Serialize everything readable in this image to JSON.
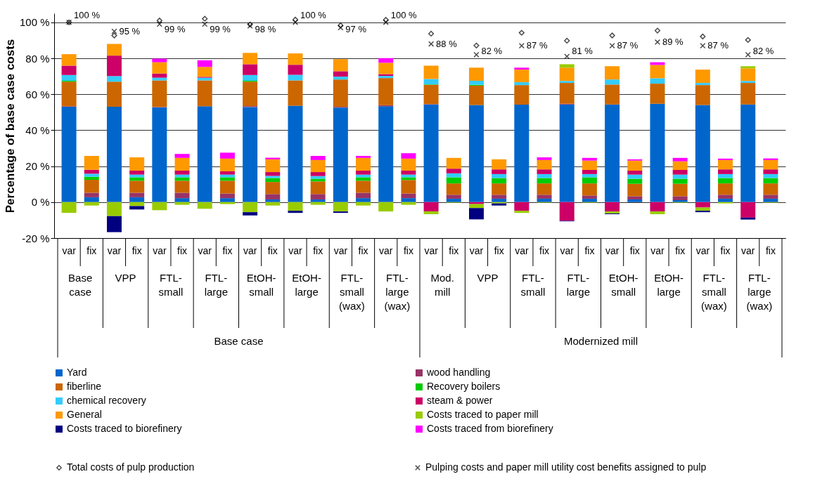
{
  "chart_data": {
    "type": "bar",
    "stacked": true,
    "ylabel": "Percentage of base case costs",
    "ylim": [
      -20,
      105
    ],
    "yticks": [
      {
        "value": -20,
        "label": "-20 %"
      },
      {
        "value": 0,
        "label": "0 %"
      },
      {
        "value": 20,
        "label": "20 %"
      },
      {
        "value": 40,
        "label": "40 %"
      },
      {
        "value": 60,
        "label": "60 %"
      },
      {
        "value": 80,
        "label": "80 %"
      },
      {
        "value": 100,
        "label": "100 %"
      }
    ],
    "grid": "y",
    "legend": "bottom",
    "categories": [
      "var",
      "fix",
      "var",
      "fix",
      "var",
      "fix",
      "var",
      "fix",
      "var",
      "fix",
      "var",
      "fix",
      "var",
      "fix",
      "var",
      "fix",
      "var",
      "fix",
      "var",
      "fix",
      "var",
      "fix",
      "var",
      "fix",
      "var",
      "fix",
      "var",
      "fix",
      "var",
      "fix",
      "var",
      "fix"
    ],
    "annotations": [
      "Base case",
      "VPP",
      "FTL-small",
      "FTL-large",
      "EtOH-small",
      "EtOH-large",
      "FTL-small (wax)",
      "FTL-large (wax)",
      "Mod. mill",
      "VPP",
      "FTL-small",
      "FTL-large",
      "EtOH-small",
      "EtOH-large",
      "FTL-small (wax)",
      "FTL-large (wax)",
      "Base case",
      "Modernized mill"
    ],
    "series": [
      {
        "name": "Yard",
        "color": "#0066cc",
        "values": [
          53.0,
          2.7,
          53.0,
          2.7,
          52.7,
          2.2,
          53.3,
          2.2,
          52.9,
          1.5,
          53.6,
          1.5,
          52.6,
          2.2,
          53.3,
          2.2,
          54.3,
          1.9,
          54.0,
          1.9,
          54.2,
          1.9,
          54.3,
          1.9,
          54.3,
          1.5,
          54.7,
          1.1,
          54.0,
          1.9,
          54.3,
          1.9
        ]
      },
      {
        "name": "wood handling",
        "color": "#993366",
        "values": [
          0.3,
          2.5,
          null,
          2.5,
          0.2,
          3.0,
          null,
          2.6,
          0.5,
          3.0,
          null,
          3.0,
          0.4,
          3.0,
          0.6,
          2.6,
          0.2,
          2.2,
          null,
          2.2,
          null,
          2.2,
          0.4,
          1.8,
          null,
          1.8,
          null,
          2.2,
          null,
          2.2,
          null,
          2.2
        ]
      },
      {
        "name": "fiberline",
        "color": "#cc6600",
        "values": [
          13.7,
          7.2,
          14.0,
          6.7,
          14.8,
          6.7,
          14.4,
          7.1,
          13.6,
          6.7,
          14.1,
          7.0,
          15.2,
          6.7,
          15.1,
          7.5,
          10.8,
          6.3,
          10.8,
          6.3,
          10.9,
          6.3,
          11.6,
          6.7,
          11.1,
          6.9,
          11.2,
          6.9,
          11.1,
          6.3,
          12.0,
          6.3
        ]
      },
      {
        "name": "Recovery boilers",
        "color": "#00cc00",
        "values": [
          0.5,
          1.7,
          null,
          1.9,
          null,
          1.9,
          null,
          1.9,
          0.5,
          2.2,
          null,
          1.5,
          null,
          1.9,
          null,
          1.5,
          0.2,
          3.4,
          0.5,
          3.0,
          null,
          3.0,
          null,
          3.4,
          null,
          2.8,
          null,
          2.8,
          null,
          3.0,
          null,
          3.0
        ]
      },
      {
        "name": "chemical recovery",
        "color": "#33ccff",
        "values": [
          3.2,
          1.7,
          3.1,
          1.5,
          1.5,
          1.5,
          1.5,
          1.5,
          3.2,
          1.2,
          3.1,
          1.5,
          1.6,
          1.5,
          1.2,
          1.5,
          3.0,
          2.2,
          2.2,
          2.2,
          1.6,
          2.2,
          1.1,
          1.8,
          2.8,
          2.3,
          3.0,
          2.3,
          1.2,
          2.2,
          1.1,
          2.2
        ]
      },
      {
        "name": "steam & power",
        "color": "#cc0066",
        "values": [
          5.2,
          2.2,
          11.4,
          2.2,
          2.3,
          2.2,
          0.5,
          1.8,
          6.0,
          2.1,
          5.6,
          2.2,
          3.0,
          2.2,
          1.0,
          2.2,
          -5.2,
          2.6,
          -1.1,
          2.6,
          -4.8,
          2.6,
          -10.4,
          2.3,
          -5.2,
          2.2,
          -5.2,
          2.6,
          -3.0,
          2.6,
          -8.6,
          2.6
        ]
      },
      {
        "name": "General",
        "color": "#ff9900",
        "values": [
          6.4,
          7.7,
          6.5,
          7.4,
          6.3,
          7.1,
          5.5,
          7.1,
          6.3,
          7.1,
          6.3,
          6.7,
          6.7,
          7.1,
          6.3,
          6.7,
          7.4,
          6.0,
          7.3,
          5.6,
          7.0,
          5.2,
          7.4,
          5.2,
          7.4,
          5.6,
          7.4,
          4.8,
          7.4,
          5.2,
          7.0,
          5.2
        ]
      },
      {
        "name": "Costs traced to paper mill",
        "color": "#99cc00",
        "values": [
          -6.0,
          -1.9,
          -7.8,
          -2.2,
          -4.5,
          -1.5,
          -3.7,
          -1.1,
          -5.6,
          -1.9,
          -4.8,
          -1.5,
          -5.2,
          -1.9,
          -5.2,
          -1.5,
          -1.5,
          -0.3,
          -2.2,
          -0.7,
          -1.2,
          -0.3,
          1.9,
          -0.3,
          -1.1,
          null,
          -1.5,
          -0.3,
          -1.8,
          -0.7,
          1.2,
          -0.3
        ]
      },
      {
        "name": "Costs traced to biorefinery",
        "color": "#000080",
        "values": [
          null,
          null,
          -8.9,
          -1.9,
          null,
          null,
          null,
          null,
          -1.8,
          null,
          -1.2,
          null,
          -0.8,
          null,
          null,
          null,
          null,
          null,
          -6.3,
          -1.2,
          null,
          null,
          -0.3,
          null,
          -0.4,
          null,
          null,
          null,
          -0.8,
          null,
          -1.1,
          null
        ]
      },
      {
        "name": "Costs traced from biorefinery",
        "color": "#ff00ff",
        "values": [
          null,
          null,
          null,
          null,
          2.0,
          2.2,
          3.7,
          3.3,
          null,
          0.9,
          null,
          2.3,
          null,
          1.1,
          2.6,
          3.0,
          null,
          null,
          null,
          null,
          1.1,
          1.5,
          null,
          1.5,
          null,
          0.7,
          1.5,
          1.9,
          null,
          0.8,
          null,
          0.9
        ]
      },
      {
        "name": "Total costs of pulp production",
        "type": "scatter",
        "marker": "diamond",
        "color": "#000000",
        "values": [
          100,
          null,
          92.7,
          null,
          101,
          null,
          102,
          null,
          98.8,
          null,
          101.5,
          null,
          98.3,
          null,
          101.4,
          null,
          93.7,
          null,
          87.1,
          null,
          94.2,
          null,
          89.8,
          null,
          92.7,
          null,
          95.4,
          null,
          92.1,
          null,
          90.2,
          null
        ]
      },
      {
        "name": "Pulping costs and paper mill utility cost benefits assigned to pulp",
        "type": "scatter",
        "marker": "cross",
        "color": "#000000",
        "values": [
          100,
          null,
          95,
          null,
          99,
          null,
          99,
          null,
          98,
          null,
          100,
          null,
          97,
          null,
          100,
          null,
          88,
          null,
          82,
          null,
          87,
          null,
          81,
          null,
          87,
          null,
          89,
          null,
          87,
          null,
          82,
          null
        ],
        "value_labels": [
          "100 %",
          null,
          "95 %",
          null,
          "99 %",
          null,
          "99 %",
          null,
          "98 %",
          null,
          "100 %",
          null,
          "97 %",
          null,
          "100 %",
          null,
          "88 %",
          null,
          "82 %",
          null,
          "87 %",
          null,
          "81 %",
          null,
          "87 %",
          null,
          "89 %",
          null,
          "87 %",
          null,
          "82 %",
          null
        ]
      }
    ]
  }
}
